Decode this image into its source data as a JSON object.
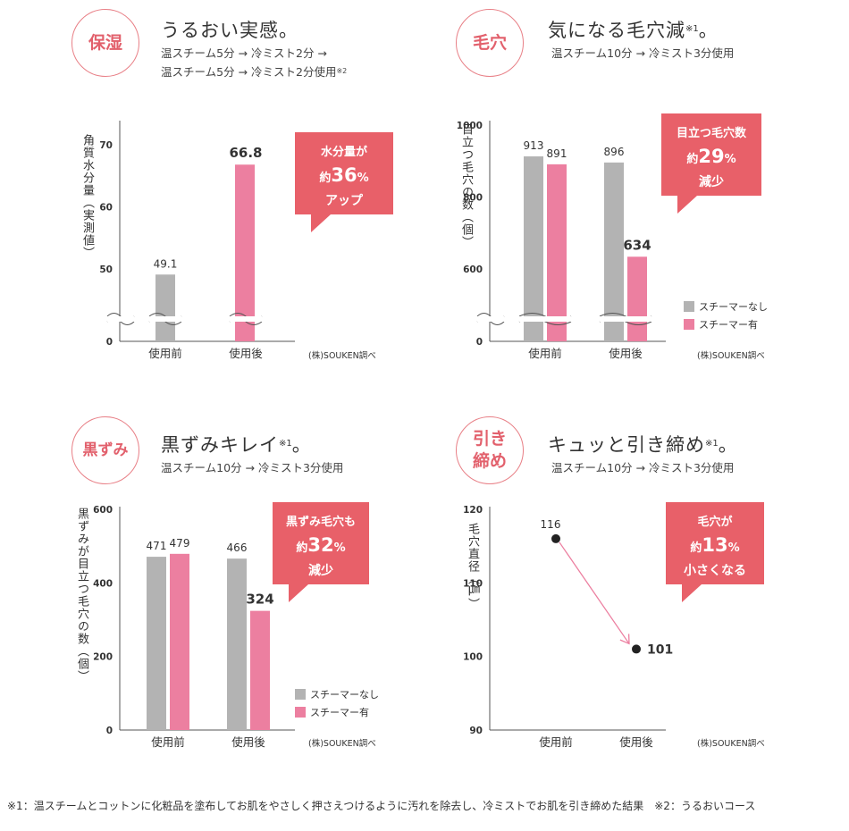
{
  "panels": [
    {
      "badge": "保湿",
      "heading": "うるおい実感。",
      "heading_sup": "",
      "sub_lines": [
        "温スチーム5分 → 冷ミスト2分 →",
        "温スチーム5分 → 冷ミスト2分使用"
      ],
      "sub_sup": "※2",
      "ylabel": "角質水分量（実測値）",
      "callout": {
        "line1": "水分量が",
        "prefix": "約",
        "number": "36",
        "unit": "%",
        "line3": "アップ"
      },
      "source": "(株)SOUKEN調べ"
    },
    {
      "badge": "毛穴",
      "heading": "気になる毛穴減",
      "heading_sup": "※1",
      "heading_tail": "。",
      "sub_lines": [
        "温スチーム10分 → 冷ミスト3分使用"
      ],
      "ylabel": "目立つ毛穴の数（個）",
      "callout": {
        "line1": "目立つ毛穴数",
        "prefix": "約",
        "number": "29",
        "unit": "%",
        "line3": "減少"
      },
      "legend": [
        "スチーマーなし",
        "スチーマー有"
      ],
      "source": "(株)SOUKEN調べ"
    },
    {
      "badge": "黒ずみ",
      "heading": "黒ずみキレイ",
      "heading_sup": "※1",
      "heading_tail": "。",
      "sub_lines": [
        "温スチーム10分 → 冷ミスト3分使用"
      ],
      "ylabel": "黒ずみが目立つ毛穴の数（個）",
      "callout": {
        "line1": "黒ずみ毛穴も",
        "prefix": "約",
        "number": "32",
        "unit": "%",
        "line3": "減少"
      },
      "legend": [
        "スチーマーなし",
        "スチーマー有"
      ],
      "source": "(株)SOUKEN調べ"
    },
    {
      "badge_lines": [
        "引き",
        "締め"
      ],
      "heading": "キュッと引き締め",
      "heading_sup": "※1",
      "heading_tail": "。",
      "sub_lines": [
        "温スチーム10分 → 冷ミスト3分使用"
      ],
      "ylabel": "毛穴直径（㎛）",
      "callout": {
        "line1": "毛穴が",
        "prefix": "約",
        "number": "13",
        "unit": "%",
        "line3": "小さくなる"
      },
      "source": "(株)SOUKEN調べ"
    }
  ],
  "footnote": "※1：温スチームとコットンに化粧品を塗布してお肌をやさしく押さえつけるように汚れを除去し、冷ミストでお肌を引き締めた結果　※2：うるおいコース",
  "colors": {
    "gray": "#b3b3b3",
    "pink": "#ec7fa0",
    "accent": "#e86069"
  },
  "chart_data": [
    {
      "type": "bar",
      "categories": [
        "使用前",
        "使用後"
      ],
      "values": [
        49.1,
        66.8
      ],
      "yticks": [
        0,
        50,
        60,
        70
      ],
      "ylim": [
        40,
        75
      ],
      "axis_break": true
    },
    {
      "type": "bar",
      "categories": [
        "使用前",
        "使用後"
      ],
      "series": [
        {
          "name": "スチーマーなし",
          "values": [
            913,
            896
          ]
        },
        {
          "name": "スチーマー有",
          "values": [
            891,
            634
          ]
        }
      ],
      "yticks": [
        0,
        600,
        800,
        1000
      ],
      "ylim": [
        500,
        1000
      ],
      "axis_break": true
    },
    {
      "type": "bar",
      "categories": [
        "使用前",
        "使用後"
      ],
      "series": [
        {
          "name": "スチーマーなし",
          "values": [
            471,
            466
          ]
        },
        {
          "name": "スチーマー有",
          "values": [
            479,
            324
          ]
        }
      ],
      "yticks": [
        0,
        200,
        400,
        600
      ],
      "ylim": [
        0,
        600
      ],
      "axis_break": false
    },
    {
      "type": "scatter",
      "categories": [
        "使用前",
        "使用後"
      ],
      "values": [
        116,
        101
      ],
      "yticks": [
        90,
        100,
        110,
        120
      ],
      "ylim": [
        90,
        120
      ]
    }
  ]
}
